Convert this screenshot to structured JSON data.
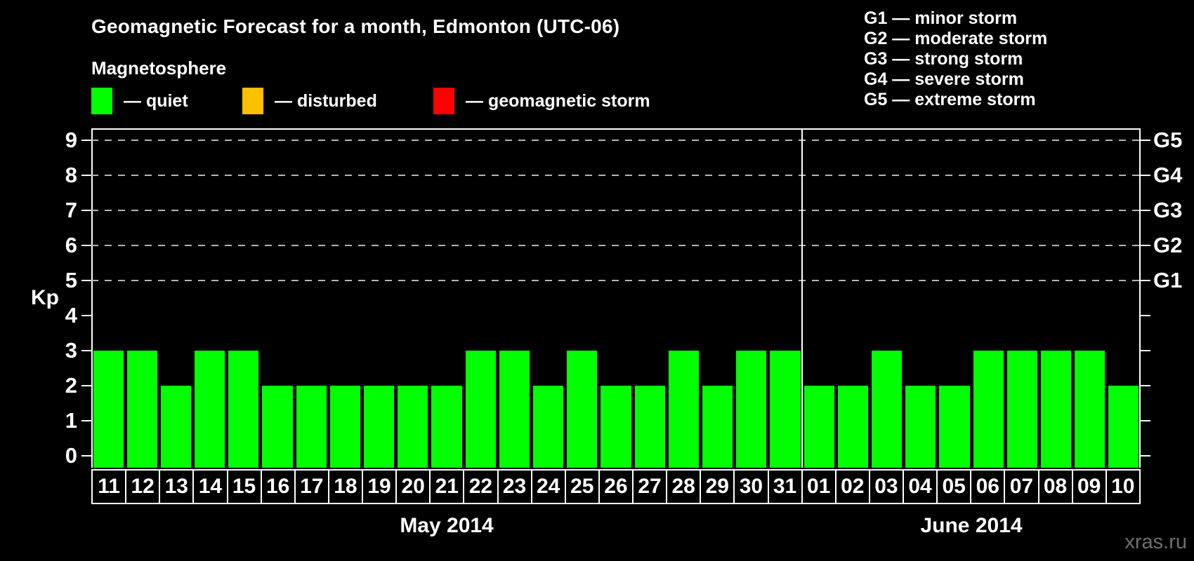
{
  "title": "Geomagnetic Forecast for a month, Edmonton (UTC-06)",
  "legend": {
    "heading": "Magnetosphere",
    "items": [
      {
        "name": "quiet",
        "label": "— quiet",
        "color": "#00ff00"
      },
      {
        "name": "disturbed",
        "label": "— disturbed",
        "color": "#ffbf00"
      },
      {
        "name": "geomagnetic-storm",
        "label": "— geomagnetic storm",
        "color": "#ff0000"
      }
    ]
  },
  "storm_scale": [
    "G1 — minor storm",
    "G2 — moderate storm",
    "G3 — strong storm",
    "G4 — severe storm",
    "G5 — extreme storm"
  ],
  "watermark": "xras.ru",
  "chart_data": {
    "type": "bar",
    "title": "Geomagnetic Forecast for a month, Edmonton (UTC-06)",
    "ylabel": "Kp",
    "ylim": [
      0,
      9
    ],
    "yticks": [
      0,
      1,
      2,
      3,
      4,
      5,
      6,
      7,
      8,
      9
    ],
    "gridlines_at_kp": [
      5,
      6,
      7,
      8,
      9
    ],
    "grid": "dashed horizontal at Kp 5-9 only",
    "legend_position": "top",
    "bar_color": "#00ff00",
    "right_axis": [
      {
        "kp": 5,
        "label": "G1"
      },
      {
        "kp": 6,
        "label": "G2"
      },
      {
        "kp": 7,
        "label": "G3"
      },
      {
        "kp": 8,
        "label": "G4"
      },
      {
        "kp": 9,
        "label": "G5"
      }
    ],
    "months": [
      {
        "label": "May 2014",
        "days": [
          "11",
          "12",
          "13",
          "14",
          "15",
          "16",
          "17",
          "18",
          "19",
          "20",
          "21",
          "22",
          "23",
          "24",
          "25",
          "26",
          "27",
          "28",
          "29",
          "30",
          "31"
        ],
        "values": [
          3,
          3,
          2,
          3,
          3,
          2,
          2,
          2,
          2,
          2,
          2,
          3,
          3,
          2,
          3,
          2,
          2,
          3,
          2,
          3,
          3
        ]
      },
      {
        "label": "June 2014",
        "days": [
          "01",
          "02",
          "03",
          "04",
          "05",
          "06",
          "07",
          "08",
          "09",
          "10"
        ],
        "values": [
          2,
          2,
          3,
          2,
          2,
          3,
          3,
          3,
          3,
          2
        ]
      }
    ]
  }
}
